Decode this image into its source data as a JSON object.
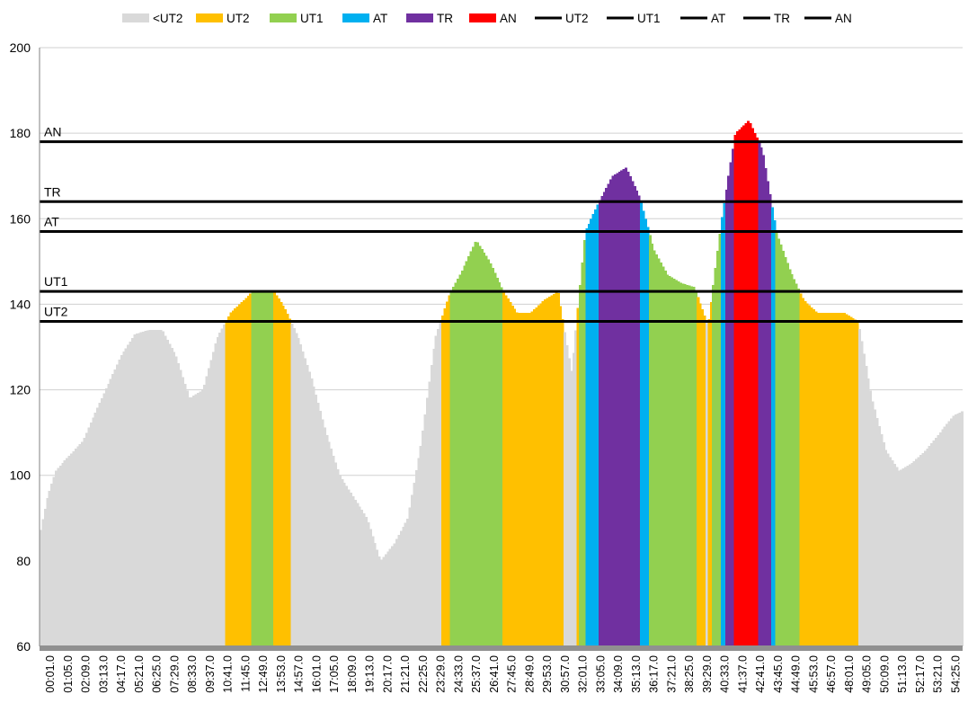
{
  "chart_data": {
    "type": "area",
    "ylim": [
      60,
      200
    ],
    "yticks": [
      60,
      80,
      100,
      120,
      140,
      160,
      180,
      200
    ],
    "grid": true,
    "legend_position": "top",
    "legend": [
      {
        "label": "<UT2",
        "kind": "area",
        "color": "#d9d9d9"
      },
      {
        "label": "UT2",
        "kind": "area",
        "color": "#ffc000"
      },
      {
        "label": "UT1",
        "kind": "area",
        "color": "#92d050"
      },
      {
        "label": "AT",
        "kind": "area",
        "color": "#00b0f0"
      },
      {
        "label": "TR",
        "kind": "area",
        "color": "#7030a0"
      },
      {
        "label": "AN",
        "kind": "area",
        "color": "#ff0000"
      },
      {
        "label": "UT2",
        "kind": "line",
        "color": "#000000"
      },
      {
        "label": "UT1",
        "kind": "line",
        "color": "#000000"
      },
      {
        "label": "AT",
        "kind": "line",
        "color": "#000000"
      },
      {
        "label": "TR",
        "kind": "line",
        "color": "#000000"
      },
      {
        "label": "AN",
        "kind": "line",
        "color": "#000000"
      }
    ],
    "zones": [
      {
        "name": "UT2",
        "threshold": 136
      },
      {
        "name": "UT1",
        "threshold": 143
      },
      {
        "name": "AT",
        "threshold": 157
      },
      {
        "name": "TR",
        "threshold": 164
      },
      {
        "name": "AN",
        "threshold": 178
      }
    ],
    "zone_colors": {
      "<UT2": "#d9d9d9",
      "UT2": "#ffc000",
      "UT1": "#92d050",
      "AT": "#00b0f0",
      "TR": "#7030a0",
      "AN": "#ff0000"
    },
    "x_tick_labels": [
      "00:01.0",
      "01:05.0",
      "02:09.0",
      "03:13.0",
      "04:17.0",
      "05:21.0",
      "06:25.0",
      "07:29.0",
      "08:33.0",
      "09:37.0",
      "10:41.0",
      "11:45.0",
      "12:49.0",
      "13:53.0",
      "14:57.0",
      "16:01.0",
      "17:05.0",
      "18:09.0",
      "19:13.0",
      "20:17.0",
      "21:21.0",
      "22:25.0",
      "23:29.0",
      "24:33.0",
      "25:37.0",
      "26:41.0",
      "27:45.0",
      "28:49.0",
      "29:53.0",
      "30:57.0",
      "32:01.0",
      "33:05.0",
      "34:09.0",
      "35:13.0",
      "36:17.0",
      "37:21.0",
      "38:25.0",
      "39:29.0",
      "40:33.0",
      "41:37.0",
      "42:41.0",
      "43:45.0",
      "44:49.0",
      "45:53.0",
      "46:57.0",
      "48:01.0",
      "49:05.0",
      "50:09.0",
      "51:13.0",
      "52:17.0",
      "53:21.0",
      "54:25.0"
    ],
    "x_range_seconds": [
      1,
      3383
    ],
    "heart_rate": {
      "x_unit": "seconds",
      "x": [
        1,
        30,
        60,
        100,
        130,
        160,
        200,
        250,
        300,
        350,
        400,
        450,
        500,
        550,
        600,
        650,
        700,
        750,
        780,
        810,
        860,
        900,
        950,
        1000,
        1050,
        1100,
        1150,
        1200,
        1250,
        1300,
        1350,
        1400,
        1450,
        1500,
        1550,
        1600,
        1650,
        1700,
        1750,
        1800,
        1850,
        1900,
        1950,
        2000,
        2050,
        2100,
        2150,
        2200,
        2250,
        2300,
        2350,
        2400,
        2450,
        2500,
        2550,
        2600,
        2650,
        2700,
        2750,
        2800,
        2850,
        2900,
        2950,
        3000,
        3050,
        3100,
        3150,
        3200,
        3250,
        3300,
        3350,
        3383
      ],
      "y": [
        86,
        95,
        101,
        104,
        106,
        108,
        114,
        121,
        128,
        133,
        134,
        134,
        128,
        118,
        120,
        132,
        138,
        141,
        143,
        143,
        143,
        139,
        132,
        122,
        110,
        100,
        95,
        90,
        80,
        84,
        90,
        108,
        132,
        142,
        148,
        155,
        150,
        143,
        138,
        138,
        141,
        143,
        124,
        157,
        164,
        170,
        172,
        165,
        153,
        147,
        145,
        144,
        135,
        160,
        180,
        183,
        176,
        157,
        148,
        141,
        138,
        138,
        138,
        136,
        118,
        106,
        101,
        103,
        106,
        110,
        114,
        115
      ]
    }
  }
}
